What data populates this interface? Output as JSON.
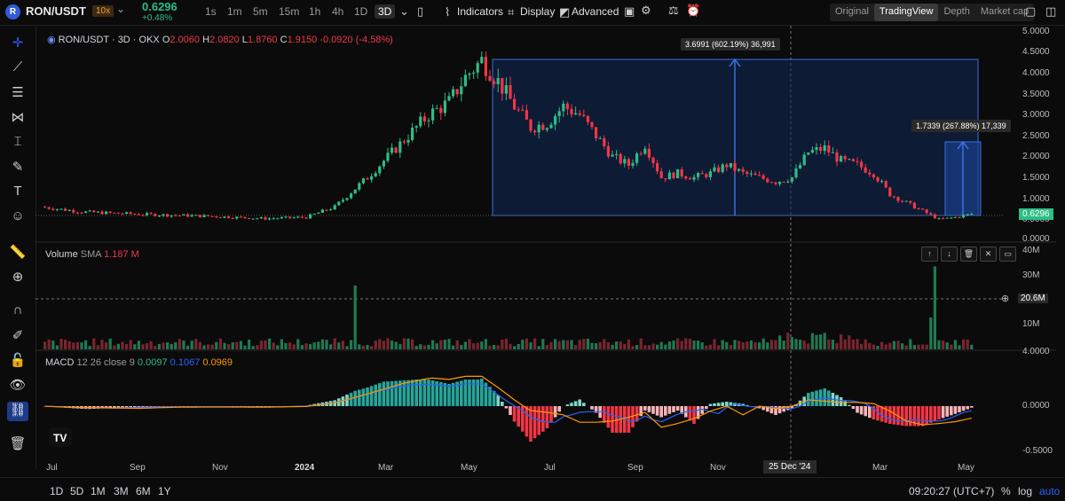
{
  "header": {
    "symbol": "RON/USDT",
    "leverage": "10x",
    "last_price": "0.6296",
    "change": "+0.48%",
    "timeframes": [
      "1s",
      "1m",
      "5m",
      "15m",
      "1h",
      "4h",
      "1D",
      "3D"
    ],
    "active_timeframe": "3D",
    "indicators_label": "Indicators",
    "display_label": "Display",
    "advanced_label": "Advanced",
    "views": [
      "Original",
      "TradingView",
      "Depth",
      "Market cap"
    ],
    "active_view": "TradingView"
  },
  "legend": {
    "title": "RON/USDT · 3D · OKX",
    "o_label": "O",
    "o_val": "2.0060",
    "h_label": "H",
    "h_val": "2.0820",
    "l_label": "L",
    "l_val": "1.8760",
    "c_label": "C",
    "c_val": "1.9150",
    "diff": "-0.0920 (-4.58%)"
  },
  "volume_legend": {
    "label": "Volume",
    "sma_label": "SMA",
    "sma_val": "1.187 M"
  },
  "macd_legend": {
    "label": "MACD",
    "params": "12 26 close 9",
    "v1": "0.0097",
    "v2": "0.1067",
    "v3": "0.0969"
  },
  "price_axis": [
    "5.0000",
    "4.5000",
    "4.0000",
    "3.5000",
    "3.0000",
    "2.5000",
    "2.0000",
    "1.5000",
    "1.0000",
    "0.5000",
    "0.0000"
  ],
  "price_tag": "0.6296",
  "volume_axis": [
    "40M",
    "30M",
    "20.6M",
    "10M"
  ],
  "macd_axis": [
    "4.0000",
    "0.0000",
    "-0.5000"
  ],
  "x_axis": [
    "Jul",
    "Sep",
    "Nov",
    "2024",
    "Mar",
    "May",
    "Jul",
    "Sep",
    "Nov",
    "25 Dec '24",
    "Mar",
    "May"
  ],
  "measure_big": "3.6991 (602.19%) 36,991",
  "measure_small": "1.7339 (267.88%) 17,339",
  "range_buttons": [
    "1D",
    "5D",
    "1M",
    "3M",
    "6M",
    "1Y"
  ],
  "clock": "09:20:27 (UTC+7)",
  "scale_opts": [
    "%",
    "log",
    "auto"
  ],
  "colors": {
    "up": "#2ebd85",
    "down": "#f23645",
    "accent": "#2962ff"
  }
}
